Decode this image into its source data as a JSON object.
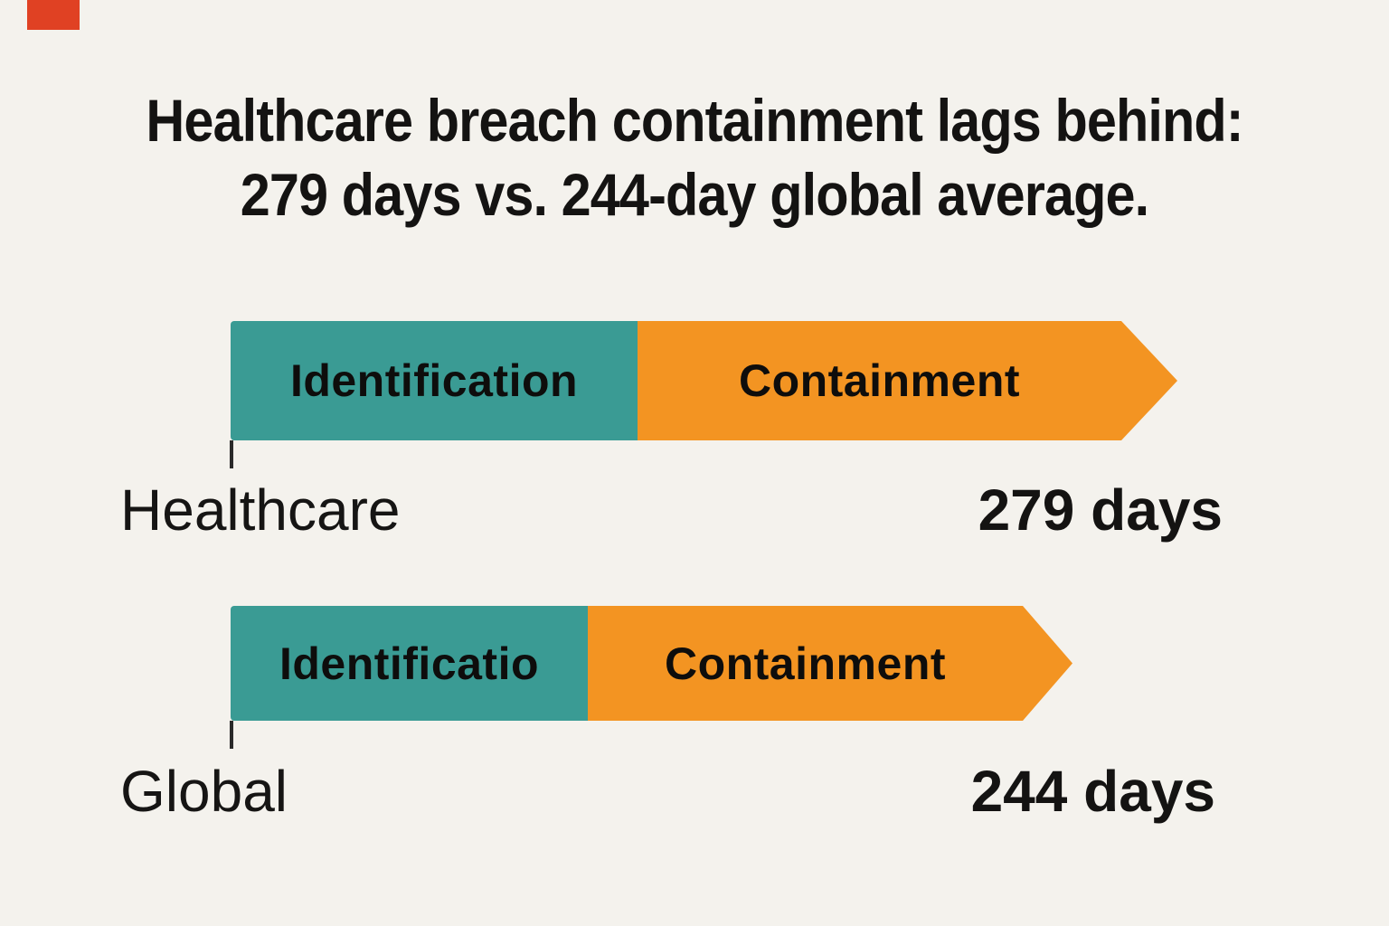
{
  "page": {
    "background_color": "#f4f2ed",
    "marker_color": "#e04123"
  },
  "title": {
    "line1": "Healthcare breach containment lags behind:",
    "line2": "279 days vs. 244-day global average."
  },
  "rows": [
    {
      "name": "Healthcare",
      "identification_label": "Identification",
      "containment_label": "Containment",
      "value": "279 days"
    },
    {
      "name": "Global",
      "identification_label": "Identificatio",
      "containment_label": "Containment",
      "value": "244 days"
    }
  ],
  "colors": {
    "identification": "#3a9b94",
    "containment": "#f39422",
    "text": "#161514"
  },
  "chart_data": {
    "type": "bar",
    "subtype": "horizontal-stacked-arrow",
    "title": "Healthcare breach containment lags behind: 279 days vs. 244-day global average.",
    "categories": [
      "Healthcare",
      "Global"
    ],
    "series": [
      {
        "name": "Identification",
        "values_days_estimated": [
          120,
          104
        ]
      },
      {
        "name": "Containment",
        "values_days_estimated": [
          159,
          140
        ]
      }
    ],
    "totals_days": [
      279,
      244
    ],
    "total_labels": [
      "279 days",
      "244 days"
    ],
    "segment_labels_shown": [
      [
        "Identification",
        "Containment"
      ],
      [
        "Identificatio",
        "Containment"
      ]
    ],
    "colors": {
      "Identification": "#3a9b94",
      "Containment": "#f39422"
    },
    "legend": "labels-inside-segments",
    "grid": false,
    "axis": "category ticks only, no numeric axis"
  }
}
